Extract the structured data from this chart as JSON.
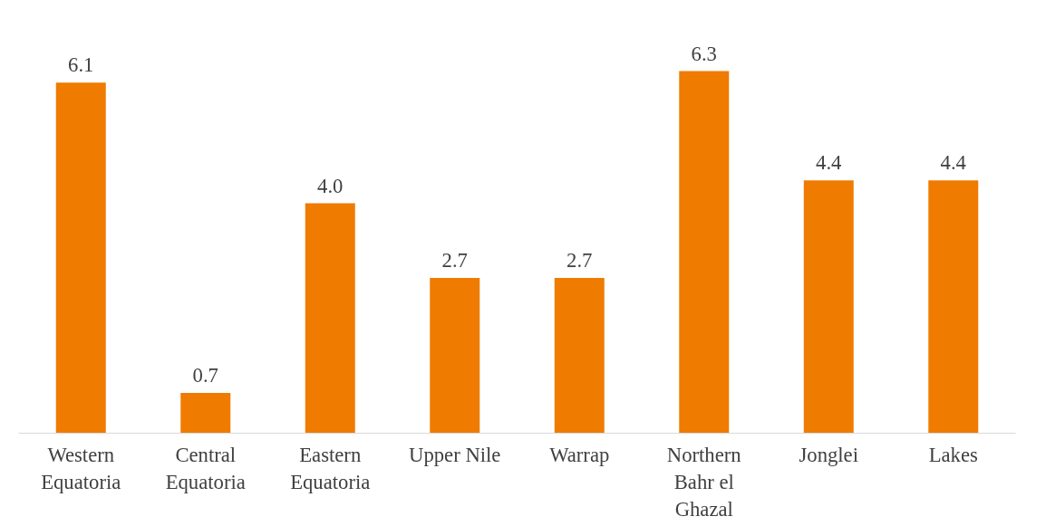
{
  "chart_data": {
    "type": "bar",
    "categories": [
      "Western Equatoria",
      "Central Equatoria",
      "Eastern Equatoria",
      "Upper Nile",
      "Warrap",
      "Northern Bahr el Ghazal",
      "Jonglei",
      "Lakes"
    ],
    "values": [
      6.1,
      0.7,
      4.0,
      2.7,
      2.7,
      6.3,
      4.4,
      4.4
    ],
    "value_labels": [
      "6.1",
      "0.7",
      "4.0",
      "2.7",
      "2.7",
      "6.3",
      "4.4",
      "4.4"
    ],
    "color": "#ef7b00"
  }
}
